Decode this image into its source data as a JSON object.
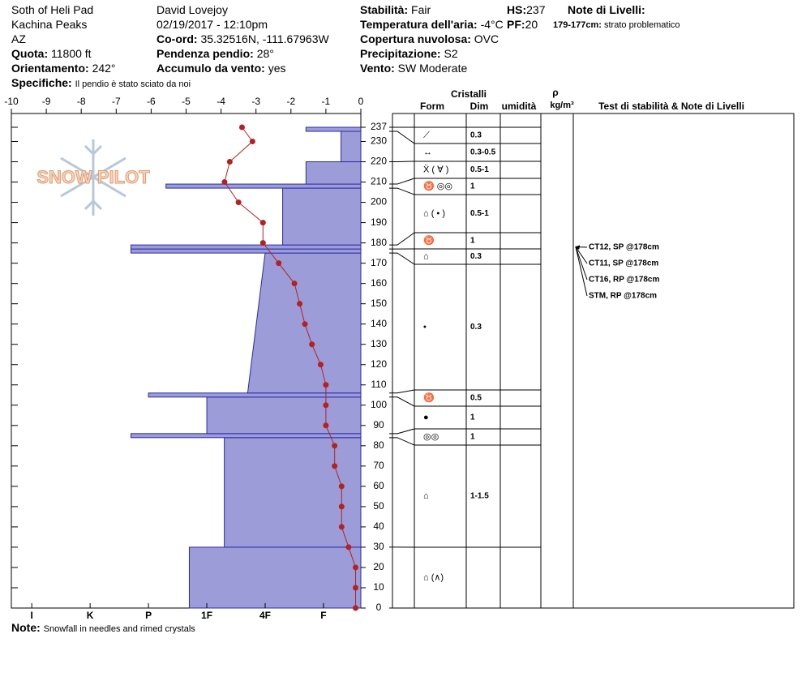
{
  "header": {
    "location": "Soth of Heli Pad",
    "range": "Kachina Peaks",
    "state": "AZ",
    "elevation": {
      "label": "Quota:",
      "value": "11800 ft"
    },
    "aspect": {
      "label": "Orientamento:",
      "value": "242°"
    },
    "specifics": {
      "label": "Specifiche:",
      "value": "Il pendio è stato sciato da noi"
    },
    "observer": "David Lovejoy",
    "datetime": "02/19/2017 - 12:10pm",
    "coords": {
      "label": "Co-ord:",
      "value": "35.32516N, -111.67963W"
    },
    "slope": {
      "label": "Pendenza pendio:",
      "value": "28°"
    },
    "wind_loading": {
      "label": "Accumulo da vento:",
      "value": "yes"
    },
    "stability": {
      "label": "Stabilità:",
      "value": "Fair"
    },
    "air_temp": {
      "label": "Temperatura dell'aria:",
      "value": "-4°C"
    },
    "sky": {
      "label": "Copertura nuvolosa:",
      "value": "OVC"
    },
    "precip": {
      "label": "Precipitazione:",
      "value": "S2"
    },
    "wind": {
      "label": "Vento:",
      "value": "SW Moderate"
    },
    "hs": {
      "label": "HS:",
      "value": "237"
    },
    "pf": {
      "label": "PF:",
      "value": "20"
    },
    "layer_notes": {
      "label": "Note di Livelli:",
      "items": [
        {
          "label": "179-177cm:",
          "value": "strato problematico"
        }
      ]
    }
  },
  "logo": "SNOW PILOT",
  "table_headers": {
    "crystals": "Cristalli",
    "form": "Form",
    "size": "Dim",
    "wetness": "umidità",
    "density": "ρ",
    "density_unit": "kg/m³",
    "tests": "Test di stabilità & Note di Livelli"
  },
  "note": {
    "label": "Note:",
    "value": "Snowfall in needles and rimed crystals"
  },
  "chart_data": {
    "type": "snow-profile",
    "xlim": [
      -10,
      0
    ],
    "xticks": [
      -10,
      -9,
      -8,
      -7,
      -6,
      -5,
      -4,
      -3,
      -2,
      -1,
      0
    ],
    "ylim": [
      0,
      237
    ],
    "yticks": [
      0,
      10,
      20,
      30,
      40,
      50,
      60,
      70,
      80,
      90,
      100,
      110,
      120,
      130,
      140,
      150,
      160,
      170,
      180,
      190,
      200,
      210,
      220,
      230,
      237
    ],
    "hardness_lim": [
      0.36,
      6.35
    ],
    "hardness_ticks": [
      {
        "value": 6,
        "label": "I"
      },
      {
        "value": 5,
        "label": "K"
      },
      {
        "value": 4,
        "label": "P"
      },
      {
        "value": 3,
        "label": "1F"
      },
      {
        "value": 2,
        "label": "4F"
      },
      {
        "value": 1,
        "label": "F"
      }
    ],
    "layer_color": "#9c9cd8",
    "layers": [
      {
        "bottom": 0,
        "top": 30,
        "hardness": 3.3,
        "form": "⌂ (∧)"
      },
      {
        "bottom": 30,
        "top": 84,
        "hardness": 2.7,
        "form": "⌂",
        "size": "1-1.5"
      },
      {
        "bottom": 84,
        "top": 86,
        "hardness": 4.3,
        "form": "◎◎",
        "size": "1"
      },
      {
        "bottom": 86,
        "top": 104,
        "hardness": 3.0,
        "form": "●",
        "size": "1"
      },
      {
        "bottom": 104,
        "top": 106,
        "hardness": 4.0,
        "form": "♉",
        "size": "0.5"
      },
      {
        "bottom": 106,
        "top": 175,
        "hardness": 2.3,
        "hardness_top": 2.0,
        "form": "•",
        "size": "0.3"
      },
      {
        "bottom": 175,
        "top": 177,
        "hardness": 4.3,
        "form": "⌂",
        "size": "0.3"
      },
      {
        "bottom": 177,
        "top": 179,
        "hardness": 4.3,
        "form": "♉",
        "size": "1"
      },
      {
        "bottom": 179,
        "top": 207,
        "hardness": 1.7,
        "form": "⌂ ( • )",
        "size": "0.5-1"
      },
      {
        "bottom": 207,
        "top": 209,
        "hardness": 3.7,
        "form": "♉ ◎◎",
        "size": "1"
      },
      {
        "bottom": 209,
        "top": 220,
        "hardness": 1.3,
        "form": "Ẍ ( ∀ )",
        "size": "0.5-1"
      },
      {
        "bottom": 220,
        "top": 235,
        "hardness": 0.7,
        "form": "↔",
        "size": "0.3-0.5"
      },
      {
        "bottom": 235,
        "top": 237,
        "hardness": 1.3,
        "form": "⟋",
        "size": "0.3"
      }
    ],
    "temperature": {
      "color": "#b22222",
      "heights": [
        237,
        230,
        220,
        210,
        200,
        190,
        180,
        170,
        160,
        150,
        140,
        130,
        120,
        110,
        100,
        90,
        80,
        70,
        60,
        50,
        40,
        30,
        20,
        10,
        0
      ],
      "values": [
        -3.4,
        -3.1,
        -3.75,
        -3.9,
        -3.5,
        -2.8,
        -2.8,
        -2.35,
        -1.9,
        -1.75,
        -1.6,
        -1.4,
        -1.15,
        -1.0,
        -1.0,
        -1.0,
        -0.75,
        -0.75,
        -0.55,
        -0.55,
        -0.55,
        -0.35,
        -0.15,
        -0.15,
        -0.15
      ]
    },
    "tests": [
      {
        "height": 178,
        "label": "CT12, SP @178cm"
      },
      {
        "height": 178,
        "label": "CT11, SP @178cm"
      },
      {
        "height": 178,
        "label": "CT16, RP @178cm"
      },
      {
        "height": 178,
        "label": "STM, RP @178cm"
      }
    ]
  }
}
